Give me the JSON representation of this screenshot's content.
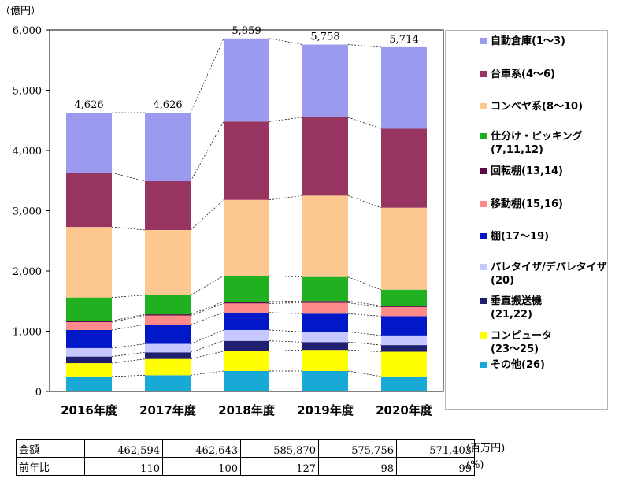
{
  "chart_data": {
    "type": "bar",
    "stacked": true,
    "unit_label": "（億円）",
    "categories": [
      "2016年度",
      "2017年度",
      "2018年度",
      "2019年度",
      "2020年度"
    ],
    "ylim": [
      0,
      6000
    ],
    "yticks": [
      "0",
      "1,000",
      "2,000",
      "3,000",
      "4,000",
      "5,000",
      "6,000"
    ],
    "totals": [
      "4,626",
      "4,626",
      "5,859",
      "5,758",
      "5,714"
    ],
    "series": [
      {
        "name": "その他(26)",
        "color": "#19a9d6",
        "values": [
          250,
          270,
          340,
          340,
          250
        ]
      },
      {
        "name": "コンピュータ\n(23～25)",
        "color": "#ffff00",
        "values": [
          220,
          270,
          330,
          350,
          410
        ]
      },
      {
        "name": "垂直搬送機\n(21,22)",
        "color": "#1f1f70",
        "values": [
          110,
          110,
          170,
          130,
          110
        ]
      },
      {
        "name": "パレタイザ/デパレタイザ\n(20)",
        "color": "#c7c7ff",
        "values": [
          140,
          140,
          180,
          170,
          160
        ]
      },
      {
        "name": "棚(17～19)",
        "color": "#0018c8",
        "values": [
          300,
          320,
          290,
          300,
          320
        ]
      },
      {
        "name": "移動棚(15,16)",
        "color": "#ff8a8a",
        "values": [
          130,
          150,
          150,
          180,
          150
        ]
      },
      {
        "name": "回転棚(13,14)",
        "color": "#5a0a48",
        "values": [
          20,
          20,
          30,
          30,
          20
        ]
      },
      {
        "name": "仕分け・ピッキング\n(7,11,12)",
        "color": "#20b020",
        "values": [
          390,
          320,
          430,
          400,
          270
        ]
      },
      {
        "name": "コンベヤ系(8～10)",
        "color": "#fcc890",
        "values": [
          1170,
          1080,
          1260,
          1350,
          1360
        ]
      },
      {
        "name": "台車系(4～6)",
        "color": "#983460",
        "values": [
          900,
          810,
          1300,
          1300,
          1310
        ]
      },
      {
        "name": "自動倉庫(1～3)",
        "color": "#9a9aee",
        "values": [
          996,
          1136,
          1379,
          1208,
          1354
        ]
      }
    ]
  },
  "table": {
    "rows": [
      {
        "label": "金額",
        "values": [
          "462,594",
          "462,643",
          "585,870",
          "575,756",
          "571,403"
        ],
        "unit": "(百万円)"
      },
      {
        "label": "前年比",
        "values": [
          "110",
          "100",
          "127",
          "98",
          "99"
        ],
        "unit": "(%)"
      }
    ]
  }
}
